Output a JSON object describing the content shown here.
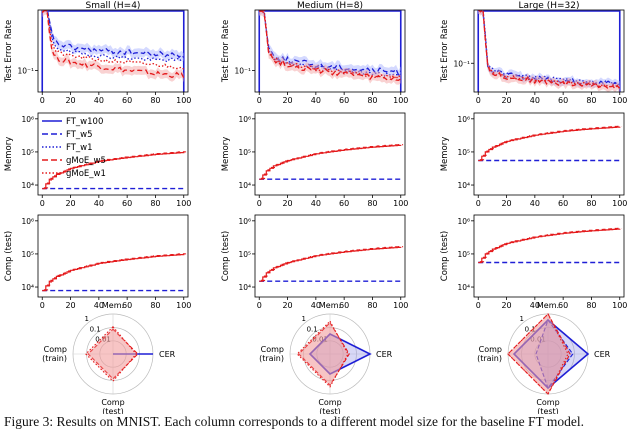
{
  "figure_caption": "Figure 3: Results on MNIST. Each column corresponds to a different model size for the baseline FT model.",
  "colors": {
    "ft": "#1f1fd6",
    "gmoe": "#e41a1c",
    "gmoe_fill": "#f4a6a6",
    "ft_fill": "#aab4ff",
    "radar_fill_blue": "#8c8ce6",
    "radar_fill_red": "#f29a9a"
  },
  "legend": [
    {
      "label": "FT_w100",
      "color": "#1f1fd6",
      "style": "solid"
    },
    {
      "label": "FT_w5",
      "color": "#1f1fd6",
      "style": "dashed"
    },
    {
      "label": "FT_w1",
      "color": "#1f1fd6",
      "style": "dotted"
    },
    {
      "label": "gMoE_w5",
      "color": "#e41a1c",
      "style": "dashed"
    },
    {
      "label": "gMoE_w1",
      "color": "#e41a1c",
      "style": "dotted"
    }
  ],
  "chart_data": [
    {
      "type": "line",
      "title": "Small (H=4)",
      "ylabel": "Test Error Rate",
      "yscale": "log",
      "ylim": [
        0.05,
        0.7
      ],
      "yticks": [
        {
          "value": 0.1,
          "label": "10⁻¹"
        }
      ],
      "xlim": [
        -3,
        103
      ],
      "xticks": [
        0,
        20,
        40,
        60,
        80,
        100
      ],
      "series": [
        {
          "name": "FT_w100",
          "x": [
            0,
            100
          ],
          "y": [
            0.7,
            0.7
          ]
        },
        {
          "name": "FT_w5",
          "x": [
            0,
            2,
            4,
            6,
            10,
            20,
            40,
            60,
            80,
            100
          ],
          "y": [
            0.7,
            0.7,
            0.7,
            0.35,
            0.24,
            0.21,
            0.19,
            0.18,
            0.17,
            0.16
          ]
        },
        {
          "name": "FT_w1",
          "x": [
            0,
            2,
            4,
            6,
            10,
            20,
            40,
            60,
            80,
            100
          ],
          "y": [
            0.7,
            0.7,
            0.7,
            0.3,
            0.21,
            0.18,
            0.16,
            0.15,
            0.14,
            0.14
          ]
        },
        {
          "name": "gMoE_w5",
          "x": [
            0,
            2,
            4,
            6,
            10,
            20,
            40,
            60,
            80,
            100
          ],
          "y": [
            0.7,
            0.7,
            0.7,
            0.2,
            0.15,
            0.13,
            0.115,
            0.1,
            0.09,
            0.085
          ]
        },
        {
          "name": "gMoE_w1",
          "x": [
            0,
            2,
            4,
            6,
            10,
            20,
            40,
            60,
            80,
            100
          ],
          "y": [
            0.7,
            0.7,
            0.7,
            0.26,
            0.18,
            0.16,
            0.14,
            0.13,
            0.12,
            0.11
          ]
        }
      ]
    },
    {
      "type": "line",
      "title": "Medium (H=8)",
      "ylabel": "Test Error Rate",
      "yscale": "log",
      "ylim": [
        0.05,
        0.7
      ],
      "yticks": [
        {
          "value": 0.1,
          "label": "10⁻¹"
        }
      ],
      "xlim": [
        -3,
        103
      ],
      "xticks": [
        0,
        20,
        40,
        60,
        80,
        100
      ],
      "series": [
        {
          "name": "FT_w100",
          "x": [
            0,
            100
          ],
          "y": [
            0.7,
            0.7
          ]
        },
        {
          "name": "FT_w5",
          "x": [
            0,
            2,
            4,
            6,
            10,
            20,
            40,
            60,
            80,
            100
          ],
          "y": [
            0.7,
            0.7,
            0.7,
            0.22,
            0.16,
            0.14,
            0.12,
            0.11,
            0.1,
            0.095
          ]
        },
        {
          "name": "FT_w1",
          "x": [
            0,
            2,
            4,
            6,
            10,
            20,
            40,
            60,
            80,
            100
          ],
          "y": [
            0.7,
            0.7,
            0.7,
            0.2,
            0.15,
            0.13,
            0.11,
            0.1,
            0.09,
            0.085
          ]
        },
        {
          "name": "gMoE_w5",
          "x": [
            0,
            2,
            4,
            6,
            10,
            20,
            40,
            60,
            80,
            100
          ],
          "y": [
            0.7,
            0.7,
            0.7,
            0.18,
            0.14,
            0.12,
            0.1,
            0.09,
            0.08,
            0.075
          ]
        },
        {
          "name": "gMoE_w1",
          "x": [
            0,
            2,
            4,
            6,
            10,
            20,
            40,
            60,
            80,
            100
          ],
          "y": [
            0.7,
            0.7,
            0.7,
            0.19,
            0.145,
            0.125,
            0.105,
            0.095,
            0.085,
            0.08
          ]
        }
      ]
    },
    {
      "type": "line",
      "title": "Large (H=32)",
      "ylabel": "Test Error Rate",
      "yscale": "log",
      "ylim": [
        0.035,
        0.7
      ],
      "yticks": [
        {
          "value": 0.1,
          "label": "10⁻¹"
        }
      ],
      "xlim": [
        -3,
        103
      ],
      "xticks": [
        0,
        20,
        40,
        60,
        80,
        100
      ],
      "series": [
        {
          "name": "FT_w100",
          "x": [
            0,
            100
          ],
          "y": [
            0.7,
            0.7
          ]
        },
        {
          "name": "FT_w5",
          "x": [
            0,
            2,
            4,
            6,
            10,
            20,
            40,
            60,
            80,
            100
          ],
          "y": [
            0.7,
            0.7,
            0.7,
            0.1,
            0.075,
            0.065,
            0.058,
            0.053,
            0.05,
            0.047
          ]
        },
        {
          "name": "FT_w1",
          "x": [
            0,
            2,
            4,
            6,
            10,
            20,
            40,
            60,
            80,
            100
          ],
          "y": [
            0.7,
            0.7,
            0.7,
            0.11,
            0.08,
            0.068,
            0.06,
            0.055,
            0.051,
            0.048
          ]
        },
        {
          "name": "gMoE_w5",
          "x": [
            0,
            2,
            4,
            6,
            10,
            20,
            40,
            60,
            80,
            100
          ],
          "y": [
            0.7,
            0.7,
            0.7,
            0.09,
            0.07,
            0.06,
            0.053,
            0.048,
            0.045,
            0.042
          ]
        },
        {
          "name": "gMoE_w1",
          "x": [
            0,
            2,
            4,
            6,
            10,
            20,
            40,
            60,
            80,
            100
          ],
          "y": [
            0.7,
            0.7,
            0.7,
            0.095,
            0.072,
            0.062,
            0.055,
            0.05,
            0.046,
            0.043
          ]
        }
      ]
    },
    {
      "type": "line",
      "title": "",
      "ylabel": "Memory",
      "yscale": "log",
      "ylim": [
        5000,
        1500000
      ],
      "yticks": [
        {
          "value": 10000,
          "label": "10⁴"
        },
        {
          "value": 100000,
          "label": "10⁵"
        },
        {
          "value": 1000000,
          "label": "10⁶"
        }
      ],
      "xlim": [
        -3,
        103
      ],
      "xticks": [
        0,
        20,
        40,
        60,
        80,
        100
      ],
      "series": [
        {
          "name": "FT",
          "x": [
            0,
            100
          ],
          "y": [
            7800,
            7800
          ]
        },
        {
          "name": "gMoE",
          "x": [
            0,
            5,
            10,
            20,
            40,
            60,
            80,
            100
          ],
          "y": [
            7800,
            15000,
            21000,
            32000,
            52000,
            68000,
            84000,
            97000
          ]
        }
      ]
    },
    {
      "type": "line",
      "title": "",
      "ylabel": "Memory",
      "yscale": "log",
      "ylim": [
        5000,
        1500000
      ],
      "yticks": [
        {
          "value": 10000,
          "label": "10⁴"
        },
        {
          "value": 100000,
          "label": "10⁵"
        },
        {
          "value": 1000000,
          "label": "10⁶"
        }
      ],
      "xlim": [
        -3,
        103
      ],
      "xticks": [
        0,
        20,
        40,
        60,
        80,
        100
      ],
      "series": [
        {
          "name": "FT",
          "x": [
            0,
            100
          ],
          "y": [
            15000,
            15000
          ]
        },
        {
          "name": "gMoE",
          "x": [
            0,
            5,
            10,
            20,
            40,
            60,
            80,
            100
          ],
          "y": [
            15000,
            27000,
            38000,
            55000,
            88000,
            115000,
            140000,
            160000
          ]
        }
      ]
    },
    {
      "type": "line",
      "title": "",
      "ylabel": "Memory",
      "yscale": "log",
      "ylim": [
        5000,
        1500000
      ],
      "yticks": [
        {
          "value": 10000,
          "label": "10⁴"
        },
        {
          "value": 100000,
          "label": "10⁵"
        },
        {
          "value": 1000000,
          "label": "10⁶"
        }
      ],
      "xlim": [
        -3,
        103
      ],
      "xticks": [
        0,
        20,
        40,
        60,
        80,
        100
      ],
      "series": [
        {
          "name": "FT",
          "x": [
            0,
            100
          ],
          "y": [
            55000,
            55000
          ]
        },
        {
          "name": "gMoE",
          "x": [
            0,
            5,
            10,
            20,
            40,
            60,
            80,
            100
          ],
          "y": [
            55000,
            100000,
            140000,
            210000,
            320000,
            420000,
            500000,
            570000
          ]
        }
      ]
    },
    {
      "type": "line",
      "title": "",
      "ylabel": "Comp (test)",
      "yscale": "log",
      "ylim": [
        5000,
        1500000
      ],
      "yticks": [
        {
          "value": 10000,
          "label": "10⁴"
        },
        {
          "value": 100000,
          "label": "10⁵"
        },
        {
          "value": 1000000,
          "label": "10⁶"
        }
      ],
      "xlim": [
        -3,
        103
      ],
      "xticks": [
        0,
        20,
        40,
        60,
        80,
        100
      ],
      "series": [
        {
          "name": "FT",
          "x": [
            0,
            100
          ],
          "y": [
            7800,
            7800
          ]
        },
        {
          "name": "gMoE",
          "x": [
            0,
            5,
            10,
            20,
            40,
            60,
            80,
            100
          ],
          "y": [
            7800,
            15000,
            21000,
            32000,
            52000,
            68000,
            84000,
            97000
          ]
        }
      ]
    },
    {
      "type": "line",
      "title": "",
      "ylabel": "Comp (test)",
      "yscale": "log",
      "ylim": [
        5000,
        1500000
      ],
      "yticks": [
        {
          "value": 10000,
          "label": "10⁴"
        },
        {
          "value": 100000,
          "label": "10⁵"
        },
        {
          "value": 1000000,
          "label": "10⁶"
        }
      ],
      "xlim": [
        -3,
        103
      ],
      "xticks": [
        0,
        20,
        40,
        60,
        80,
        100
      ],
      "series": [
        {
          "name": "FT",
          "x": [
            0,
            100
          ],
          "y": [
            15000,
            15000
          ]
        },
        {
          "name": "gMoE",
          "x": [
            0,
            5,
            10,
            20,
            40,
            60,
            80,
            100
          ],
          "y": [
            15000,
            27000,
            38000,
            55000,
            88000,
            115000,
            140000,
            160000
          ]
        }
      ]
    },
    {
      "type": "line",
      "title": "",
      "ylabel": "Comp (test)",
      "yscale": "log",
      "ylim": [
        5000,
        1500000
      ],
      "yticks": [
        {
          "value": 10000,
          "label": "10⁴"
        },
        {
          "value": 100000,
          "label": "10⁵"
        },
        {
          "value": 1000000,
          "label": "10⁶"
        }
      ],
      "xlim": [
        -3,
        103
      ],
      "xticks": [
        0,
        20,
        40,
        60,
        80,
        100
      ],
      "series": [
        {
          "name": "FT",
          "x": [
            0,
            100
          ],
          "y": [
            55000,
            55000
          ]
        },
        {
          "name": "gMoE",
          "x": [
            0,
            5,
            10,
            20,
            40,
            60,
            80,
            100
          ],
          "y": [
            55000,
            100000,
            140000,
            210000,
            320000,
            420000,
            500000,
            570000
          ]
        }
      ]
    },
    {
      "type": "radar",
      "axes": [
        "Mem.",
        "CER",
        "Comp\n(test)",
        "Comp\n(train)"
      ],
      "ring_labels": [
        "1",
        "0.1",
        "0.01"
      ],
      "series": [
        {
          "name": "FT_w100",
          "values": [
            0.0,
            1.0,
            0.0,
            0.0
          ]
        },
        {
          "name": "gMoE_w5",
          "values": [
            0.62,
            0.62,
            0.62,
            0.62
          ]
        },
        {
          "name": "gMoE_w1",
          "values": [
            0.68,
            0.58,
            0.68,
            0.68
          ]
        }
      ]
    },
    {
      "type": "radar",
      "axes": [
        "Mem.",
        "CER",
        "Comp\n(test)",
        "Comp\n(train)"
      ],
      "ring_labels": [
        "1",
        "0.1",
        "0.01"
      ],
      "series": [
        {
          "name": "FT_w100",
          "values": [
            0.5,
            1.0,
            0.5,
            0.5
          ]
        },
        {
          "name": "gMoE_w5",
          "values": [
            0.78,
            0.48,
            0.78,
            0.78
          ]
        },
        {
          "name": "gMoE_w1",
          "values": [
            0.82,
            0.45,
            0.82,
            0.82
          ]
        }
      ]
    },
    {
      "type": "radar",
      "axes": [
        "Mem.",
        "CER",
        "Comp\n(test)",
        "Comp\n(train)"
      ],
      "ring_labels": [
        "1",
        "0.1",
        "0.01"
      ],
      "series": [
        {
          "name": "FT_w100",
          "values": [
            0.85,
            1.0,
            0.85,
            0.85
          ]
        },
        {
          "name": "FT_w5",
          "values": [
            0.85,
            0.62,
            0.85,
            0.3
          ]
        },
        {
          "name": "gMoE_w5",
          "values": [
            1.0,
            0.55,
            1.0,
            1.0
          ]
        },
        {
          "name": "gMoE_w1",
          "values": [
            1.0,
            0.5,
            1.0,
            1.0
          ]
        }
      ]
    }
  ]
}
